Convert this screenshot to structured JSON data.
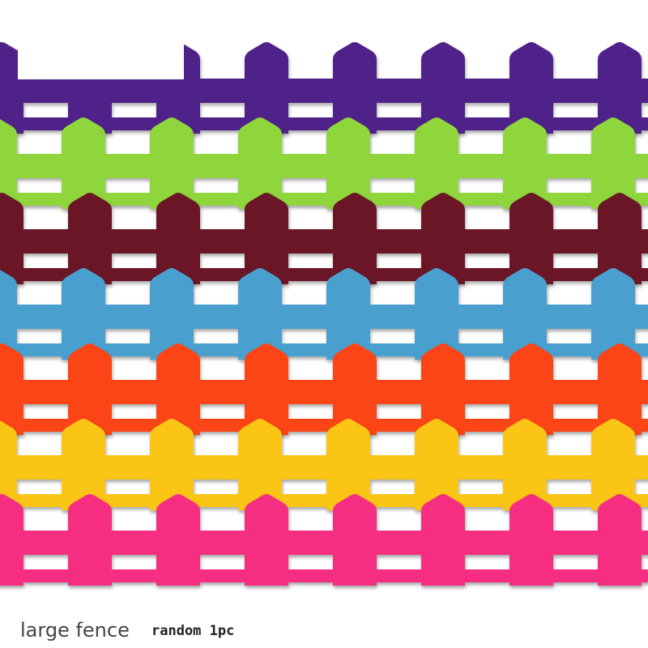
{
  "caption": {
    "title": "large fence",
    "note": "random 1pc"
  }
}
